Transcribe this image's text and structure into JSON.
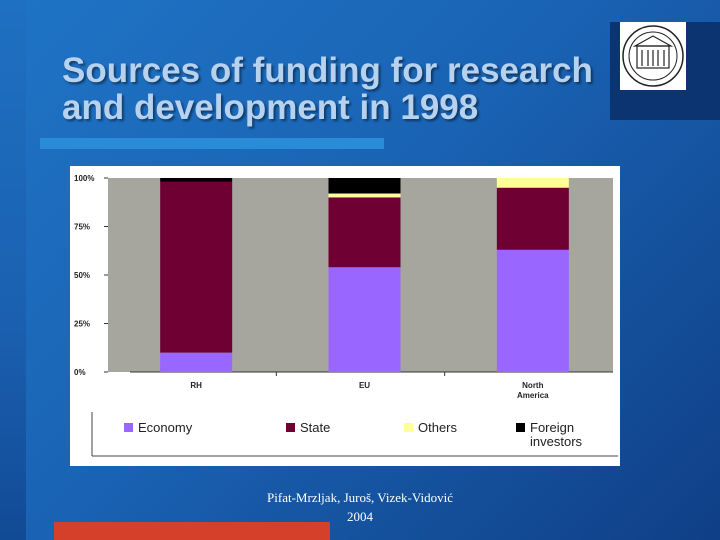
{
  "slide": {
    "title": "Sources of funding for research\nand development in 1998",
    "footer_line1": "Pifat-Mrzljak, Juroš, Vizek-Vidović",
    "footer_line2": "2004",
    "logo_icon": "university-seal-icon"
  },
  "colors": {
    "background": "#1a63b4",
    "title": "#b6d2ee",
    "plot_area": "#a6a69e",
    "economy": "#9966ff",
    "state": "#6e0033",
    "others": "#ffff99",
    "foreign": "#000000"
  },
  "chart_data": {
    "type": "bar",
    "stacked": true,
    "percent": true,
    "categories": [
      "RH",
      "EU",
      "North America"
    ],
    "category_labels": [
      [
        "RH"
      ],
      [
        "EU"
      ],
      [
        "North",
        "America"
      ]
    ],
    "series": [
      {
        "name": "Economy",
        "values": [
          10,
          54,
          63
        ],
        "color": "#9966ff"
      },
      {
        "name": "State",
        "values": [
          88,
          36,
          32
        ],
        "color": "#6e0033"
      },
      {
        "name": "Others",
        "values": [
          0,
          2,
          5
        ],
        "color": "#ffff99"
      },
      {
        "name": "Foreign investors",
        "values": [
          2,
          8,
          0
        ],
        "color": "#000000"
      }
    ],
    "legend_labels": [
      [
        "Economy"
      ],
      [
        "State"
      ],
      [
        "Others"
      ],
      [
        "Foreign",
        "investors"
      ]
    ],
    "yticks": [
      "0%",
      "25%",
      "50%",
      "75%",
      "100%"
    ],
    "ylim": [
      0,
      100
    ],
    "legend_position": "bottom",
    "grid": false
  }
}
